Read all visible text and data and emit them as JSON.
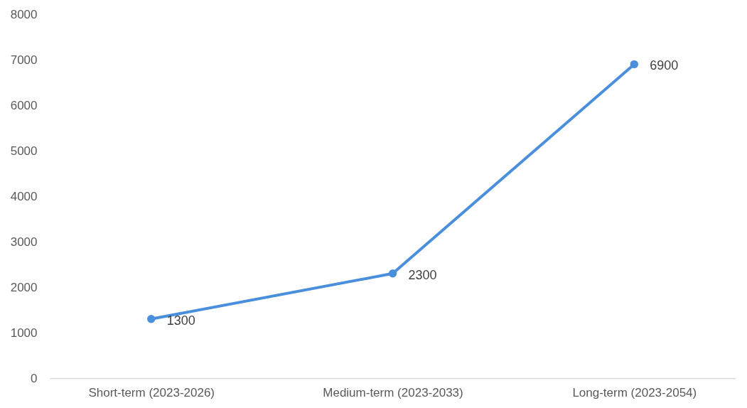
{
  "chart_data": {
    "type": "line",
    "categories": [
      "Short-term (2023-2026)",
      "Medium-term (2023-2033)",
      "Long-term (2023-2054)"
    ],
    "values": [
      1300,
      2300,
      6900
    ],
    "color": "#4a8fdb",
    "ylim": [
      0,
      8000
    ],
    "yticks": [
      0,
      1000,
      2000,
      3000,
      4000,
      5000,
      6000,
      7000,
      8000
    ],
    "marker": "circle",
    "data_labels": true
  }
}
